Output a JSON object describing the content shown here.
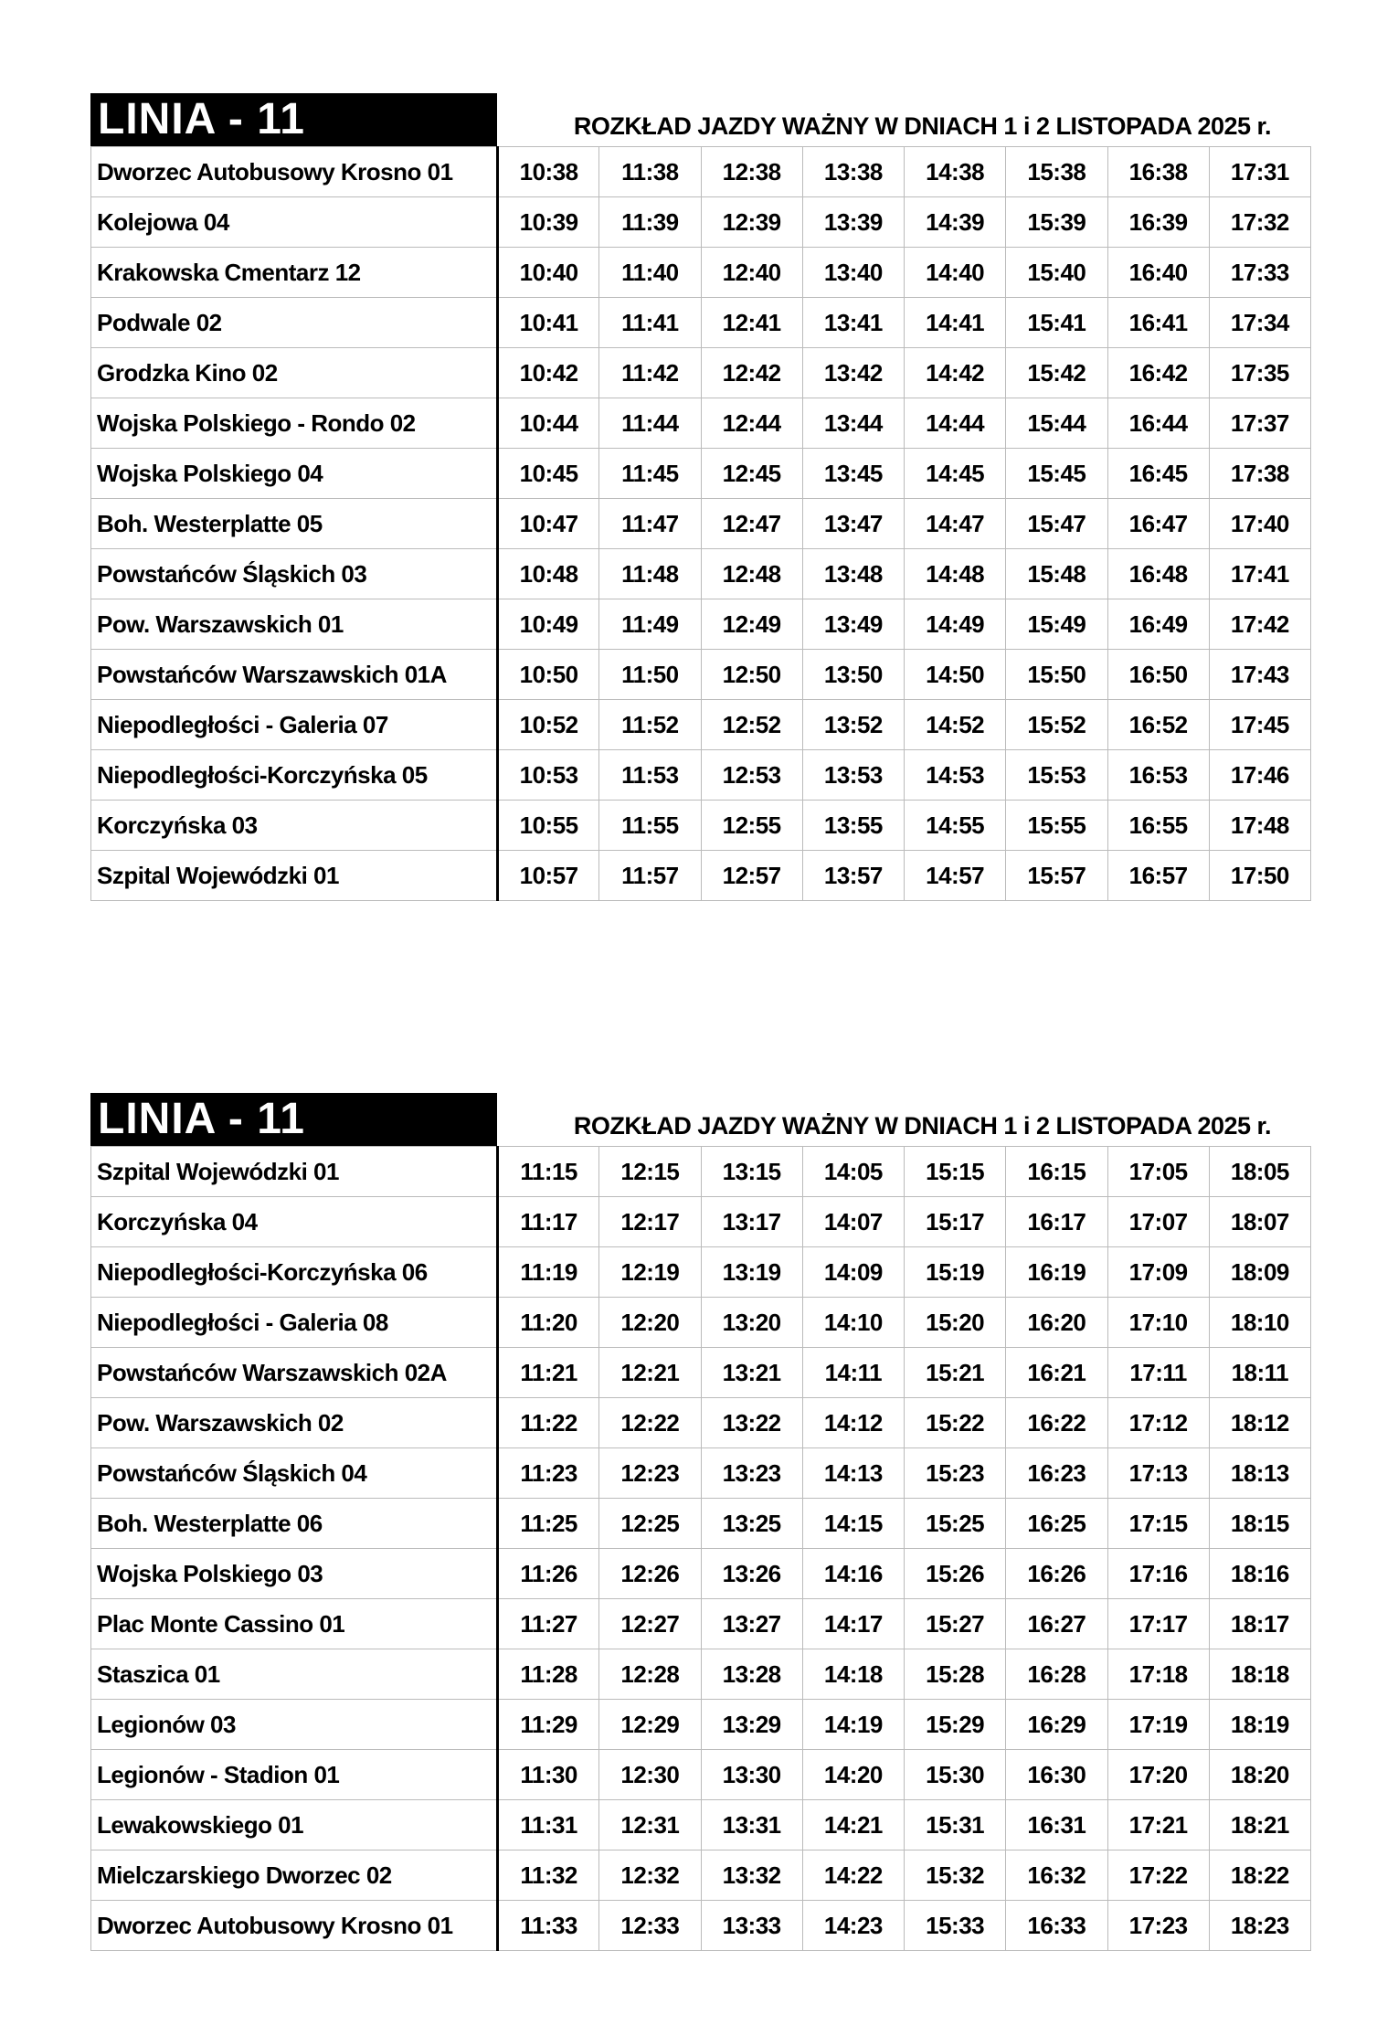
{
  "tables": [
    {
      "line": "LINIA - 11",
      "title": "ROZKŁAD JAZDY WAŻNY W DNIACH 1 i 2 LISTOPADA 2025 r.",
      "rows": [
        {
          "stop": "Dworzec Autobusowy Krosno 01",
          "times": [
            "10:38",
            "11:38",
            "12:38",
            "13:38",
            "14:38",
            "15:38",
            "16:38",
            "17:31"
          ]
        },
        {
          "stop": "Kolejowa 04",
          "times": [
            "10:39",
            "11:39",
            "12:39",
            "13:39",
            "14:39",
            "15:39",
            "16:39",
            "17:32"
          ]
        },
        {
          "stop": "Krakowska Cmentarz 12",
          "times": [
            "10:40",
            "11:40",
            "12:40",
            "13:40",
            "14:40",
            "15:40",
            "16:40",
            "17:33"
          ]
        },
        {
          "stop": "Podwale 02",
          "times": [
            "10:41",
            "11:41",
            "12:41",
            "13:41",
            "14:41",
            "15:41",
            "16:41",
            "17:34"
          ]
        },
        {
          "stop": "Grodzka Kino 02",
          "times": [
            "10:42",
            "11:42",
            "12:42",
            "13:42",
            "14:42",
            "15:42",
            "16:42",
            "17:35"
          ]
        },
        {
          "stop": "Wojska Polskiego - Rondo 02",
          "times": [
            "10:44",
            "11:44",
            "12:44",
            "13:44",
            "14:44",
            "15:44",
            "16:44",
            "17:37"
          ]
        },
        {
          "stop": "Wojska Polskiego 04",
          "times": [
            "10:45",
            "11:45",
            "12:45",
            "13:45",
            "14:45",
            "15:45",
            "16:45",
            "17:38"
          ]
        },
        {
          "stop": "Boh. Westerplatte 05",
          "times": [
            "10:47",
            "11:47",
            "12:47",
            "13:47",
            "14:47",
            "15:47",
            "16:47",
            "17:40"
          ]
        },
        {
          "stop": "Powstańców Śląskich 03",
          "times": [
            "10:48",
            "11:48",
            "12:48",
            "13:48",
            "14:48",
            "15:48",
            "16:48",
            "17:41"
          ]
        },
        {
          "stop": "Pow. Warszawskich 01",
          "times": [
            "10:49",
            "11:49",
            "12:49",
            "13:49",
            "14:49",
            "15:49",
            "16:49",
            "17:42"
          ]
        },
        {
          "stop": "Powstańców Warszawskich 01A",
          "times": [
            "10:50",
            "11:50",
            "12:50",
            "13:50",
            "14:50",
            "15:50",
            "16:50",
            "17:43"
          ]
        },
        {
          "stop": "Niepodległości - Galeria 07",
          "times": [
            "10:52",
            "11:52",
            "12:52",
            "13:52",
            "14:52",
            "15:52",
            "16:52",
            "17:45"
          ]
        },
        {
          "stop": "Niepodległości-Korczyńska 05",
          "times": [
            "10:53",
            "11:53",
            "12:53",
            "13:53",
            "14:53",
            "15:53",
            "16:53",
            "17:46"
          ]
        },
        {
          "stop": "Korczyńska 03",
          "times": [
            "10:55",
            "11:55",
            "12:55",
            "13:55",
            "14:55",
            "15:55",
            "16:55",
            "17:48"
          ]
        },
        {
          "stop": "Szpital Wojewódzki 01",
          "times": [
            "10:57",
            "11:57",
            "12:57",
            "13:57",
            "14:57",
            "15:57",
            "16:57",
            "17:50"
          ]
        }
      ]
    },
    {
      "line": "LINIA - 11",
      "title": "ROZKŁAD JAZDY WAŻNY W DNIACH 1 i 2 LISTOPADA 2025 r.",
      "rows": [
        {
          "stop": "Szpital Wojewódzki 01",
          "times": [
            "11:15",
            "12:15",
            "13:15",
            "14:05",
            "15:15",
            "16:15",
            "17:05",
            "18:05"
          ]
        },
        {
          "stop": "Korczyńska 04",
          "times": [
            "11:17",
            "12:17",
            "13:17",
            "14:07",
            "15:17",
            "16:17",
            "17:07",
            "18:07"
          ]
        },
        {
          "stop": "Niepodległości-Korczyńska 06",
          "times": [
            "11:19",
            "12:19",
            "13:19",
            "14:09",
            "15:19",
            "16:19",
            "17:09",
            "18:09"
          ]
        },
        {
          "stop": "Niepodległości - Galeria 08",
          "times": [
            "11:20",
            "12:20",
            "13:20",
            "14:10",
            "15:20",
            "16:20",
            "17:10",
            "18:10"
          ]
        },
        {
          "stop": "Powstańców Warszawskich 02A",
          "times": [
            "11:21",
            "12:21",
            "13:21",
            "14:11",
            "15:21",
            "16:21",
            "17:11",
            "18:11"
          ]
        },
        {
          "stop": "Pow. Warszawskich 02",
          "times": [
            "11:22",
            "12:22",
            "13:22",
            "14:12",
            "15:22",
            "16:22",
            "17:12",
            "18:12"
          ]
        },
        {
          "stop": "Powstańców Śląskich 04",
          "times": [
            "11:23",
            "12:23",
            "13:23",
            "14:13",
            "15:23",
            "16:23",
            "17:13",
            "18:13"
          ]
        },
        {
          "stop": "Boh. Westerplatte 06",
          "times": [
            "11:25",
            "12:25",
            "13:25",
            "14:15",
            "15:25",
            "16:25",
            "17:15",
            "18:15"
          ]
        },
        {
          "stop": "Wojska Polskiego 03",
          "times": [
            "11:26",
            "12:26",
            "13:26",
            "14:16",
            "15:26",
            "16:26",
            "17:16",
            "18:16"
          ]
        },
        {
          "stop": "Plac Monte Cassino 01",
          "times": [
            "11:27",
            "12:27",
            "13:27",
            "14:17",
            "15:27",
            "16:27",
            "17:17",
            "18:17"
          ]
        },
        {
          "stop": "Staszica 01",
          "times": [
            "11:28",
            "12:28",
            "13:28",
            "14:18",
            "15:28",
            "16:28",
            "17:18",
            "18:18"
          ]
        },
        {
          "stop": "Legionów 03",
          "times": [
            "11:29",
            "12:29",
            "13:29",
            "14:19",
            "15:29",
            "16:29",
            "17:19",
            "18:19"
          ]
        },
        {
          "stop": "Legionów - Stadion 01",
          "times": [
            "11:30",
            "12:30",
            "13:30",
            "14:20",
            "15:30",
            "16:30",
            "17:20",
            "18:20"
          ]
        },
        {
          "stop": "Lewakowskiego 01",
          "times": [
            "11:31",
            "12:31",
            "13:31",
            "14:21",
            "15:31",
            "16:31",
            "17:21",
            "18:21"
          ]
        },
        {
          "stop": "Mielczarskiego Dworzec 02",
          "times": [
            "11:32",
            "12:32",
            "13:32",
            "14:22",
            "15:32",
            "16:32",
            "17:22",
            "18:22"
          ]
        },
        {
          "stop": "Dworzec Autobusowy Krosno 01",
          "times": [
            "11:33",
            "12:33",
            "13:33",
            "14:23",
            "15:33",
            "16:33",
            "17:23",
            "18:23"
          ]
        }
      ]
    }
  ]
}
